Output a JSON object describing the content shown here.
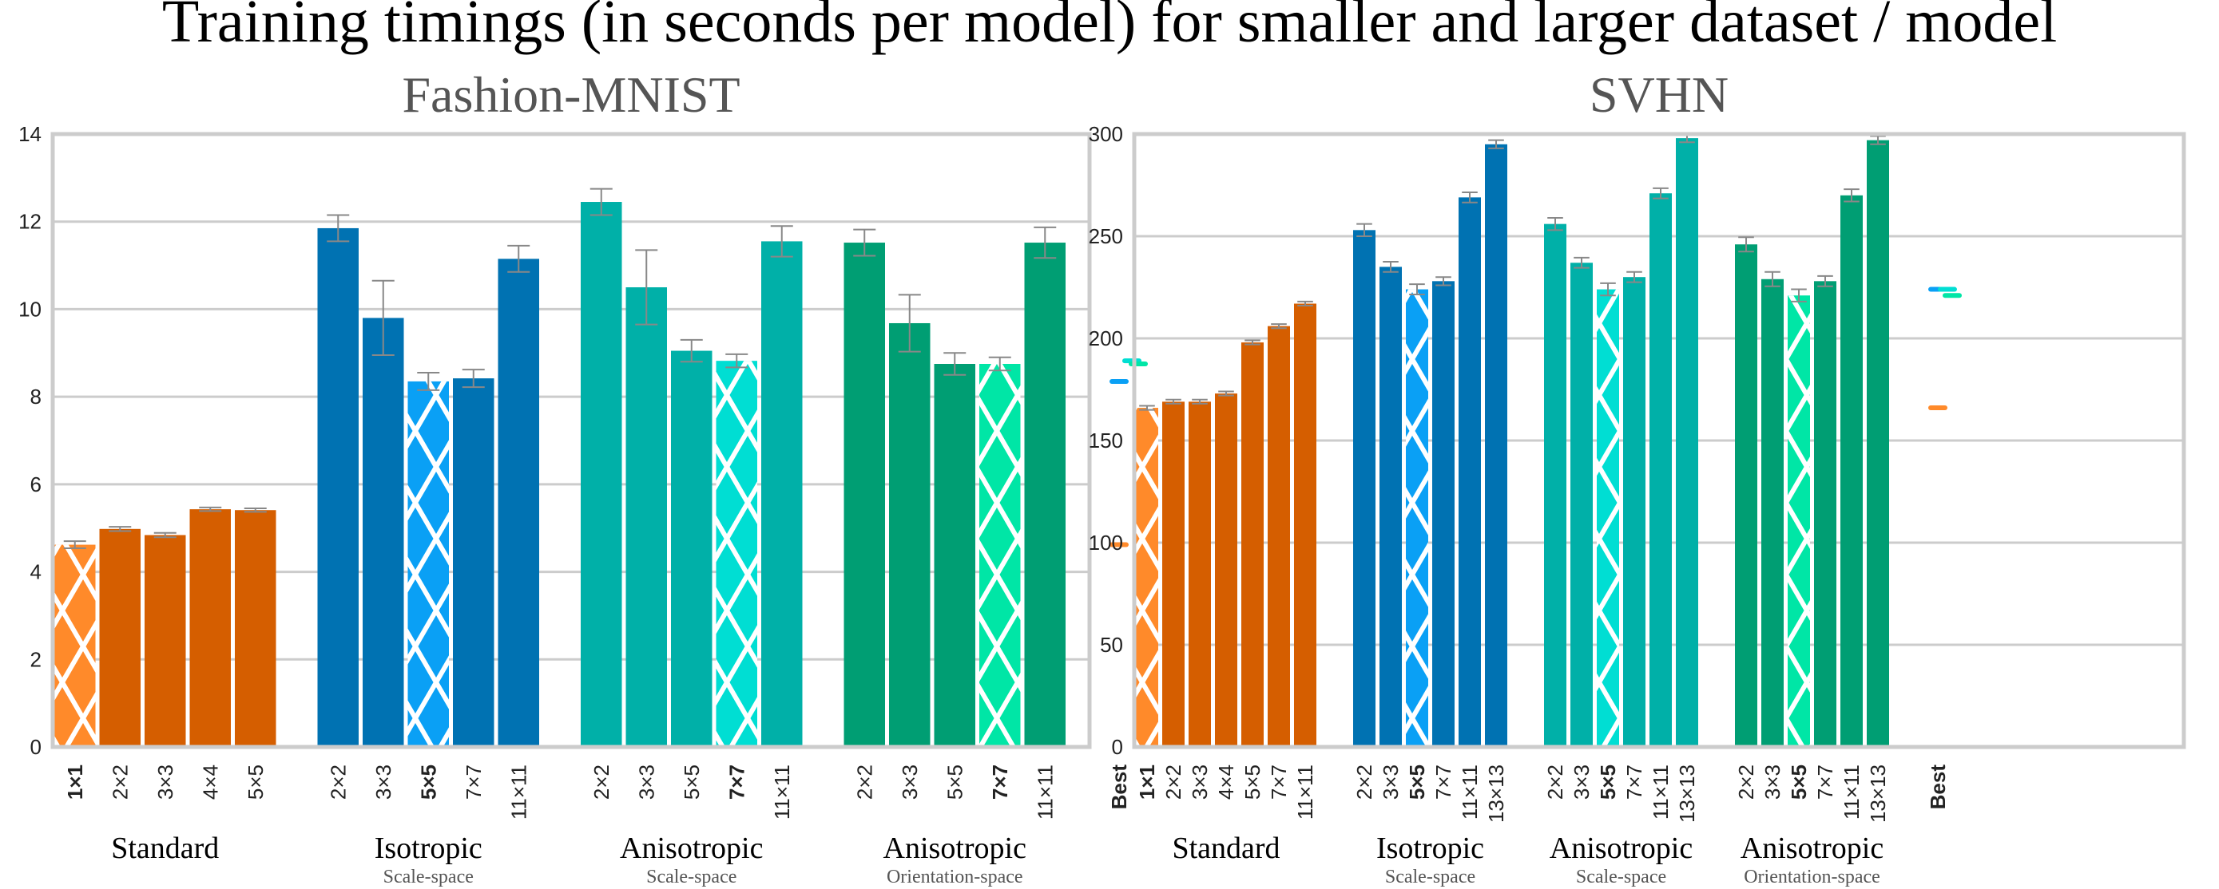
{
  "title": "Training timings (in seconds per model) for smaller and larger dataset / model",
  "colors": {
    "standard": "#D55E00",
    "standard_best": "#FF8A2A",
    "isotropic": "#0072B2",
    "isotropic_best": "#0AA0F5",
    "aniso_scale": "#00B0A8",
    "aniso_scale_best": "#00DED3",
    "aniso_orient": "#009E73",
    "aniso_orient_best": "#00E6A6",
    "grid": "#cccccc",
    "errorbar": "#888888"
  },
  "chart_data": [
    {
      "type": "bar",
      "title": "Fashion-MNIST",
      "ylim": [
        0,
        14
      ],
      "yticks": [
        0,
        2,
        4,
        6,
        8,
        10,
        12,
        14
      ],
      "groups": [
        {
          "name": "Standard",
          "subname": "",
          "color": "standard",
          "best_color": "standard_best",
          "categories": [
            "1×1",
            "2×2",
            "3×3",
            "4×4",
            "5×5"
          ],
          "values": [
            4.62,
            4.98,
            4.84,
            5.43,
            5.41
          ],
          "errors": [
            0.08,
            0.05,
            0.05,
            0.04,
            0.04
          ],
          "best_index": 0
        },
        {
          "name": "Isotropic",
          "subname": "Scale-space",
          "color": "isotropic",
          "best_color": "isotropic_best",
          "categories": [
            "2×2",
            "3×3",
            "5×5",
            "7×7",
            "11×11"
          ],
          "values": [
            11.85,
            9.8,
            8.35,
            8.42,
            11.15
          ],
          "errors": [
            0.3,
            0.85,
            0.2,
            0.2,
            0.3
          ],
          "best_index": 2
        },
        {
          "name": "Anisotropic",
          "subname": "Scale-space",
          "color": "aniso_scale",
          "best_color": "aniso_scale_best",
          "categories": [
            "2×2",
            "3×3",
            "5×5",
            "7×7",
            "11×11"
          ],
          "values": [
            12.45,
            10.5,
            9.05,
            8.82,
            11.55
          ],
          "errors": [
            0.3,
            0.85,
            0.25,
            0.15,
            0.35
          ],
          "best_index": 3
        },
        {
          "name": "Anisotropic",
          "subname": "Orientation-space",
          "color": "aniso_orient",
          "best_color": "aniso_orient_best",
          "categories": [
            "2×2",
            "3×3",
            "5×5",
            "7×7",
            "11×11"
          ],
          "values": [
            11.52,
            9.68,
            8.75,
            8.75,
            11.52
          ],
          "errors": [
            0.3,
            0.65,
            0.25,
            0.15,
            0.35
          ],
          "best_index": 3
        }
      ],
      "best_label": "Best"
    },
    {
      "type": "bar",
      "title": "SVHN",
      "ylim": [
        0,
        300
      ],
      "yticks": [
        0,
        50,
        100,
        150,
        200,
        250,
        300
      ],
      "groups": [
        {
          "name": "Standard",
          "subname": "",
          "color": "standard",
          "best_color": "standard_best",
          "categories": [
            "1×1",
            "2×2",
            "3×3",
            "4×4",
            "5×5",
            "7×7",
            "11×11"
          ],
          "values": [
            166,
            169,
            169,
            173,
            198,
            206,
            217
          ],
          "errors": [
            1,
            1,
            1,
            1,
            1,
            1,
            1
          ],
          "best_index": 0
        },
        {
          "name": "Isotropic",
          "subname": "Scale-space",
          "color": "isotropic",
          "best_color": "isotropic_best",
          "categories": [
            "2×2",
            "3×3",
            "5×5",
            "7×7",
            "11×11",
            "13×13"
          ],
          "values": [
            253,
            235,
            224,
            228,
            269,
            295
          ],
          "errors": [
            3,
            2.5,
            2.5,
            2,
            2.5,
            2
          ],
          "best_index": 2
        },
        {
          "name": "Anisotropic",
          "subname": "Scale-space",
          "color": "aniso_scale",
          "best_color": "aniso_scale_best",
          "categories": [
            "2×2",
            "3×3",
            "5×5",
            "7×7",
            "11×11",
            "13×13"
          ],
          "values": [
            256,
            237,
            224,
            230,
            271,
            298
          ],
          "errors": [
            3,
            2.5,
            3,
            2.5,
            2.5,
            2
          ],
          "best_index": 2
        },
        {
          "name": "Anisotropic",
          "subname": "Orientation-space",
          "color": "aniso_orient",
          "best_color": "aniso_orient_best",
          "categories": [
            "2×2",
            "3×3",
            "5×5",
            "7×7",
            "11×11",
            "13×13"
          ],
          "values": [
            246,
            229,
            221,
            228,
            270,
            297
          ],
          "errors": [
            3.5,
            3.5,
            3,
            2.5,
            3,
            2
          ],
          "best_index": 2
        }
      ],
      "best_label": "Best"
    }
  ]
}
